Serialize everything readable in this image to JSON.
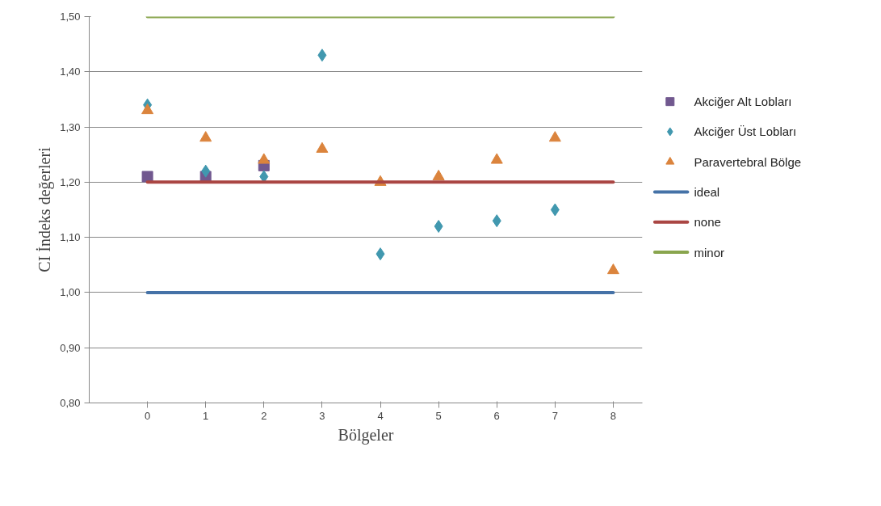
{
  "chart_data": {
    "type": "scatter",
    "xlabel": "Bölgeler",
    "ylabel": "CI İndeks değerleri",
    "xlim": [
      -1,
      8.5
    ],
    "xticks": [
      0,
      1,
      2,
      3,
      4,
      5,
      6,
      7,
      8
    ],
    "ylim": [
      0.8,
      1.5
    ],
    "yticks": [
      {
        "value": 0.8,
        "label": "0,80"
      },
      {
        "value": 0.9,
        "label": "0,90"
      },
      {
        "value": 1.0,
        "label": "1,00"
      },
      {
        "value": 1.1,
        "label": "1,10"
      },
      {
        "value": 1.2,
        "label": "1,20"
      },
      {
        "value": 1.3,
        "label": "1,30"
      },
      {
        "value": 1.4,
        "label": "1,40"
      },
      {
        "value": 1.5,
        "label": "1,50"
      }
    ],
    "grid": "y",
    "legend": "right",
    "series": [
      {
        "name": "Akciğer Alt Lobları",
        "marker": "square",
        "color": "#71588f",
        "x": [
          0,
          1,
          2
        ],
        "values": [
          1.21,
          1.21,
          1.23
        ]
      },
      {
        "name": "Akciğer Üst Lobları",
        "marker": "diamond",
        "color": "#4198af",
        "x": [
          0,
          1,
          2,
          3,
          4,
          5,
          6,
          7
        ],
        "values": [
          1.34,
          1.22,
          1.21,
          1.43,
          1.07,
          1.12,
          1.13,
          1.15
        ]
      },
      {
        "name": "Paravertebral Bölge",
        "marker": "triangle",
        "color": "#db843d",
        "x": [
          0,
          1,
          2,
          3,
          4,
          5,
          6,
          7,
          8
        ],
        "values": [
          1.33,
          1.28,
          1.24,
          1.26,
          1.2,
          1.21,
          1.24,
          1.28,
          1.04
        ]
      },
      {
        "name": "ideal",
        "type": "line",
        "color": "#4572a7",
        "x": [
          0,
          8
        ],
        "values": [
          1.0,
          1.0
        ]
      },
      {
        "name": "none",
        "type": "line",
        "color": "#aa4643",
        "x": [
          0,
          8
        ],
        "values": [
          1.2,
          1.2
        ]
      },
      {
        "name": "minor",
        "type": "line",
        "color": "#89a54e",
        "x": [
          0,
          8
        ],
        "values": [
          1.5,
          1.5
        ]
      }
    ]
  }
}
